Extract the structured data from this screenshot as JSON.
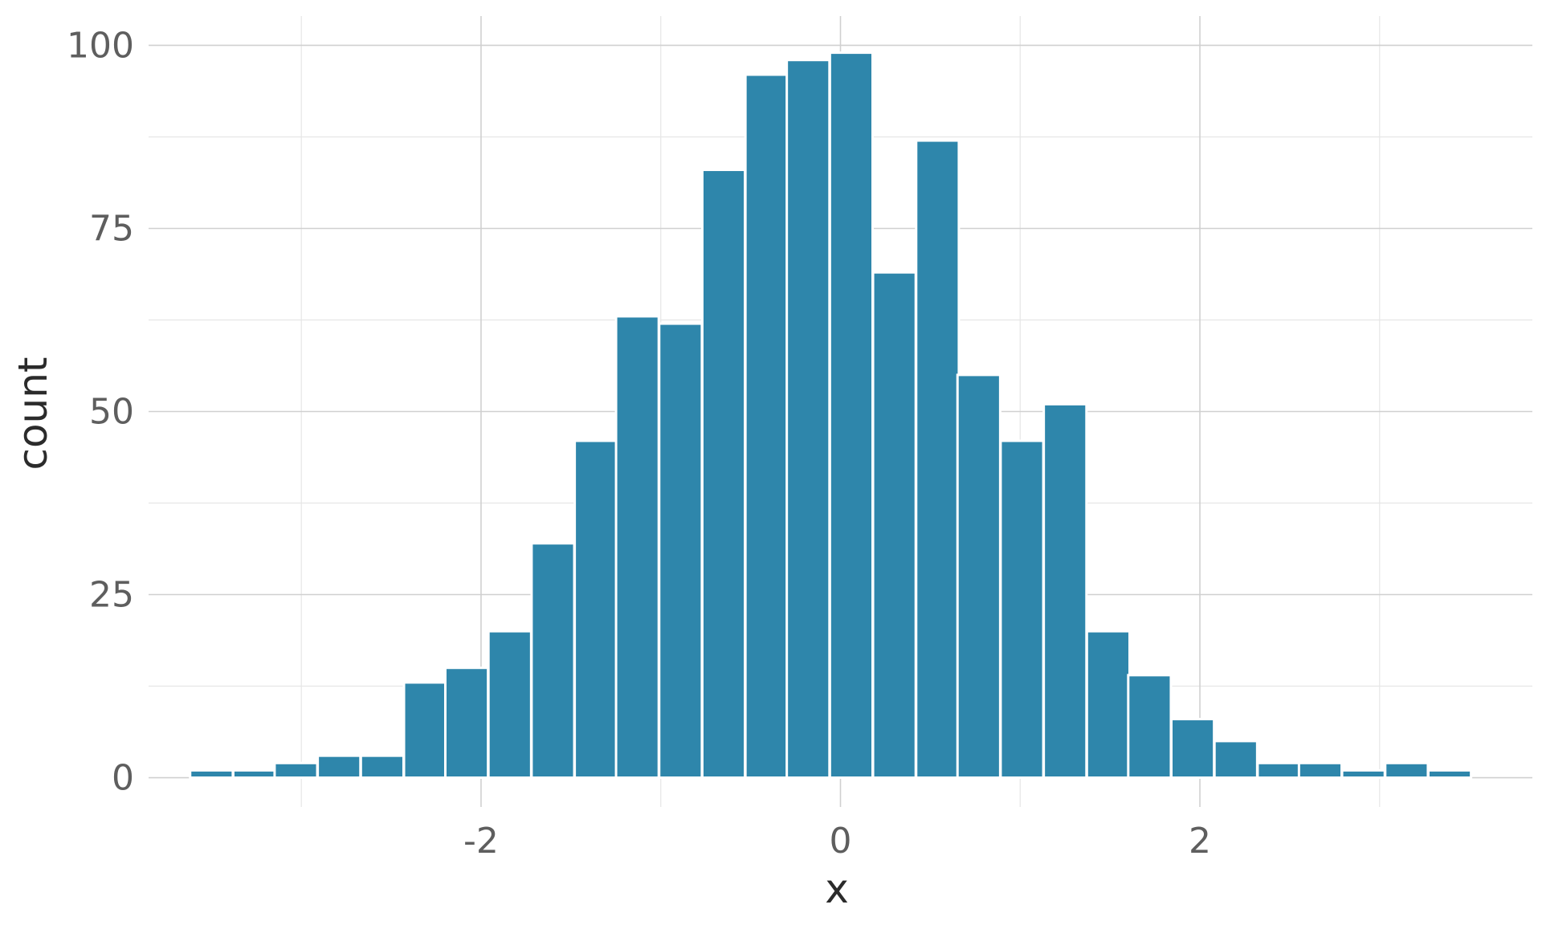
{
  "chart_data": {
    "type": "bar",
    "subtype": "histogram",
    "xlabel": "x",
    "ylabel": "count",
    "xlim": [
      -3.85,
      3.85
    ],
    "ylim": [
      -4,
      104
    ],
    "x_ticks": [
      -2,
      0,
      2
    ],
    "x_tick_labels": [
      "-2",
      "0",
      "2"
    ],
    "x_minor_grid": [
      -3,
      -1,
      1,
      3
    ],
    "y_ticks": [
      0,
      25,
      50,
      75,
      100
    ],
    "y_tick_labels": [
      "0",
      "25",
      "50",
      "75",
      "100"
    ],
    "y_minor_grid": [
      12.5,
      37.5,
      62.5,
      87.5
    ],
    "grid": true,
    "bar_color": "#2E86AB",
    "bin_width": 0.2375,
    "bins": [
      {
        "x": -3.5,
        "count": 1
      },
      {
        "x": -3.26,
        "count": 1
      },
      {
        "x": -3.03,
        "count": 2
      },
      {
        "x": -2.79,
        "count": 3
      },
      {
        "x": -2.55,
        "count": 3
      },
      {
        "x": -2.31,
        "count": 13
      },
      {
        "x": -2.08,
        "count": 15
      },
      {
        "x": -1.84,
        "count": 20
      },
      {
        "x": -1.6,
        "count": 32
      },
      {
        "x": -1.36,
        "count": 46
      },
      {
        "x": -1.13,
        "count": 63
      },
      {
        "x": -0.89,
        "count": 62
      },
      {
        "x": -0.65,
        "count": 83
      },
      {
        "x": -0.41,
        "count": 96
      },
      {
        "x": -0.18,
        "count": 98
      },
      {
        "x": 0.06,
        "count": 99
      },
      {
        "x": 0.3,
        "count": 69
      },
      {
        "x": 0.54,
        "count": 87
      },
      {
        "x": 0.77,
        "count": 55
      },
      {
        "x": 1.01,
        "count": 46
      },
      {
        "x": 1.25,
        "count": 51
      },
      {
        "x": 1.49,
        "count": 20
      },
      {
        "x": 1.72,
        "count": 14
      },
      {
        "x": 1.96,
        "count": 8
      },
      {
        "x": 2.2,
        "count": 5
      },
      {
        "x": 2.44,
        "count": 2
      },
      {
        "x": 2.67,
        "count": 2
      },
      {
        "x": 2.91,
        "count": 1
      },
      {
        "x": 3.15,
        "count": 2
      },
      {
        "x": 3.39,
        "count": 1
      }
    ]
  }
}
